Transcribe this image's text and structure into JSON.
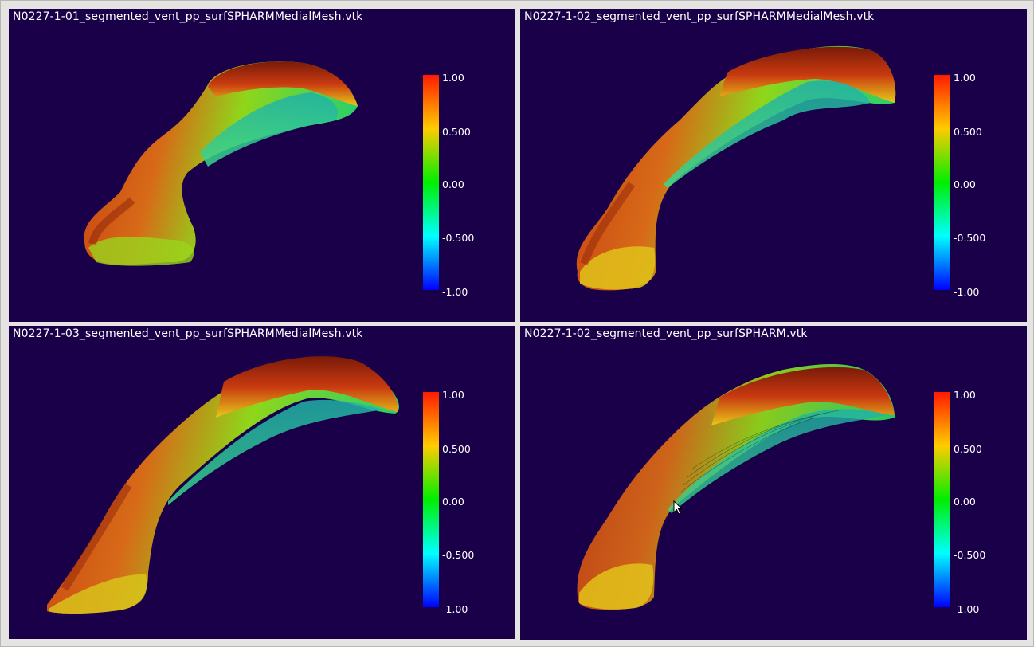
{
  "views": [
    {
      "title": "N0227-1-01_segmented_vent_pp_surfSPHARMMedialMesh.vtk"
    },
    {
      "title": "N0227-1-02_segmented_vent_pp_surfSPHARMMedialMesh.vtk"
    },
    {
      "title": "N0227-1-03_segmented_vent_pp_surfSPHARMMedialMesh.vtk"
    },
    {
      "title": "N0227-1-02_segmented_vent_pp_surfSPHARM.vtk"
    }
  ],
  "colorbar": {
    "labels": [
      "1.00",
      "0.500",
      "0.00",
      "-0.500",
      "-1.00"
    ],
    "colors": [
      "#ff1a00",
      "#ffcc00",
      "#00ee00",
      "#00ffff",
      "#0000ff"
    ]
  },
  "background_color": "#1a0048"
}
